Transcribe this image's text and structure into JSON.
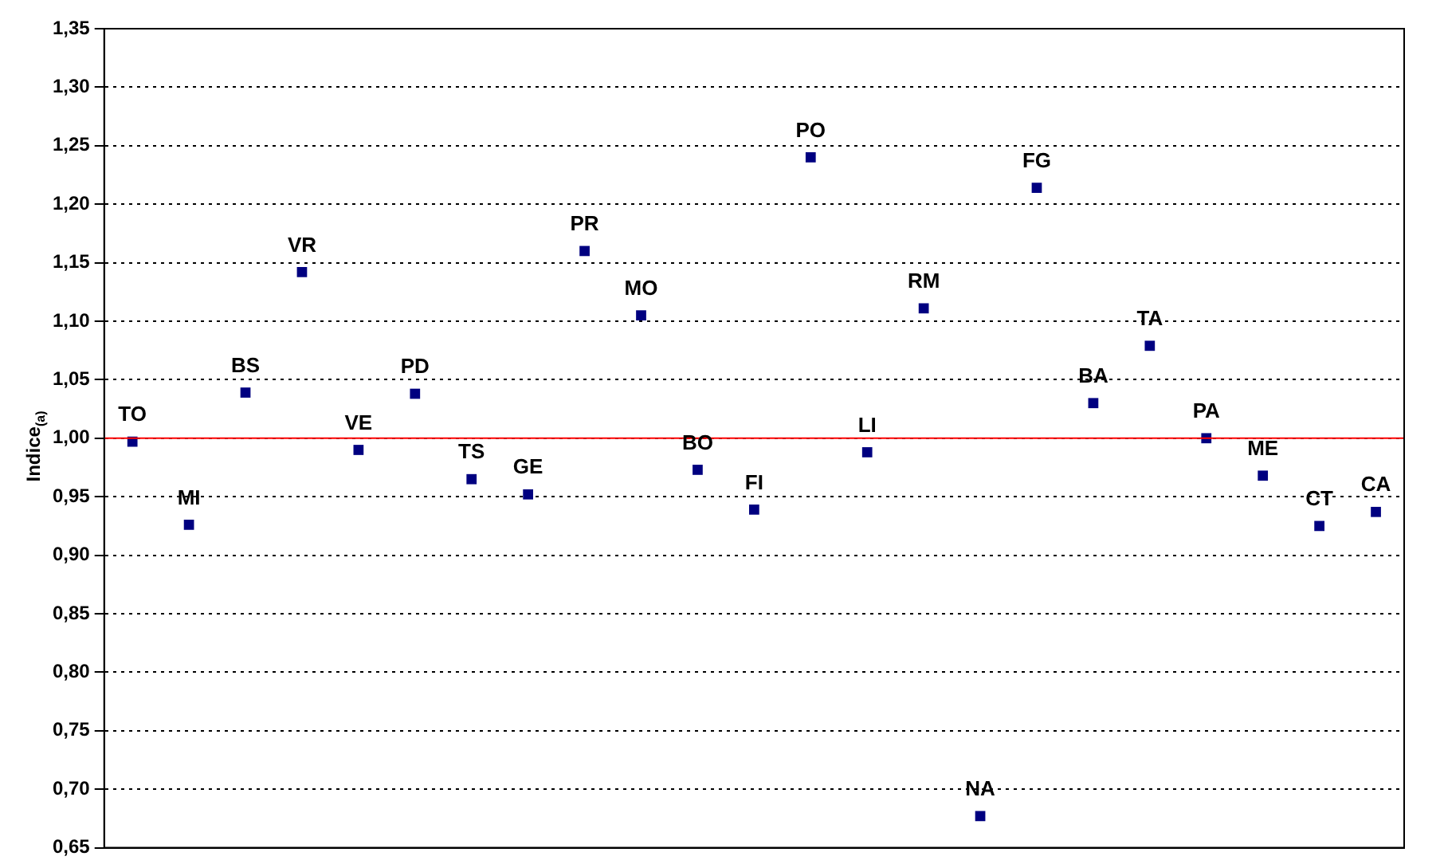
{
  "chart_data": {
    "type": "scatter",
    "ylabel": "Indice$_{(a)}$",
    "categories": [
      "TO",
      "MI",
      "BS",
      "VR",
      "VE",
      "PD",
      "TS",
      "GE",
      "PR",
      "MO",
      "BO",
      "FI",
      "PO",
      "LI",
      "RM",
      "NA",
      "FG",
      "BA",
      "TA",
      "PA",
      "ME",
      "CT",
      "CA"
    ],
    "series": [
      {
        "color": "#000080",
        "values": [
          0.997,
          0.926,
          1.039,
          1.142,
          0.99,
          1.038,
          0.965,
          0.952,
          1.16,
          1.105,
          0.973,
          0.939,
          1.24,
          0.988,
          1.111,
          0.677,
          1.214,
          1.03,
          1.079,
          1.0,
          0.968,
          0.925,
          0.937
        ]
      }
    ],
    "ylim": [
      0.65,
      1.35
    ],
    "yticks": [
      {
        "value": 0.65,
        "label": "0,65"
      },
      {
        "value": 0.7,
        "label": "0,70"
      },
      {
        "value": 0.75,
        "label": "0,75"
      },
      {
        "value": 0.8,
        "label": "0,80"
      },
      {
        "value": 0.85,
        "label": "0,85"
      },
      {
        "value": 0.9,
        "label": "0,90"
      },
      {
        "value": 0.95,
        "label": "0,95"
      },
      {
        "value": 1.0,
        "label": "1,00"
      },
      {
        "value": 1.05,
        "label": "1,05"
      },
      {
        "value": 1.1,
        "label": "1,10"
      },
      {
        "value": 1.15,
        "label": "1,15"
      },
      {
        "value": 1.2,
        "label": "1,20"
      },
      {
        "value": 1.25,
        "label": "1,25"
      },
      {
        "value": 1.3,
        "label": "1,30"
      },
      {
        "value": 1.35,
        "label": "1,35"
      }
    ],
    "ref_lines": [
      {
        "axis": "y",
        "value": 1.0,
        "color": "#ff0000"
      }
    ],
    "grid": "y",
    "line_style": "dotted",
    "marker": "square",
    "tick_labels": "y",
    "legend": false
  }
}
